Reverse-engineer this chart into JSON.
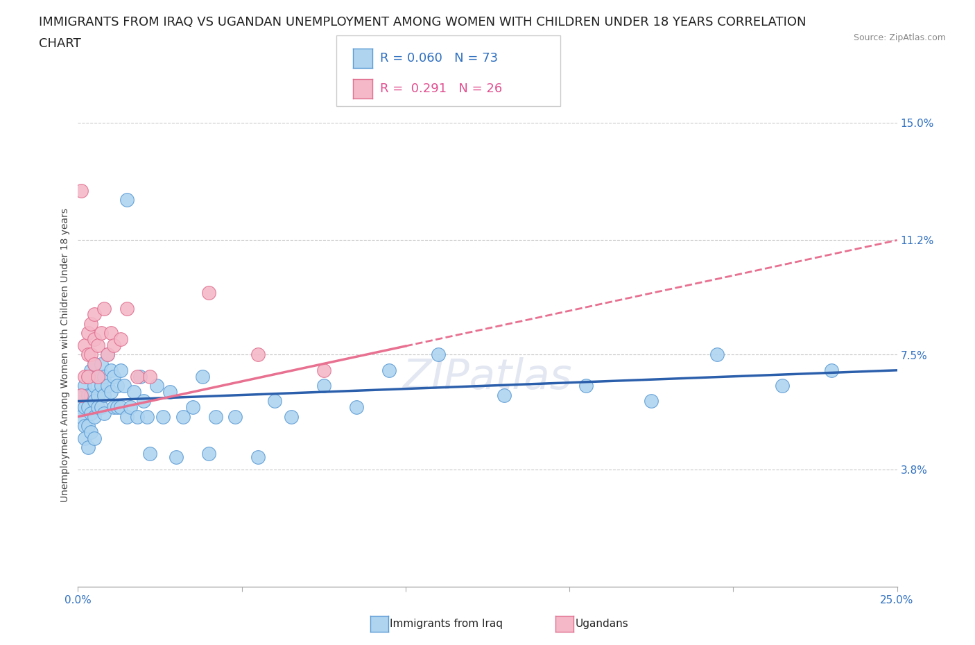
{
  "title_line1": "IMMIGRANTS FROM IRAQ VS UGANDAN UNEMPLOYMENT AMONG WOMEN WITH CHILDREN UNDER 18 YEARS CORRELATION",
  "title_line2": "CHART",
  "source_text": "Source: ZipAtlas.com",
  "ylabel": "Unemployment Among Women with Children Under 18 years",
  "xlim": [
    0,
    0.25
  ],
  "ylim": [
    0,
    0.15
  ],
  "xtick_values": [
    0.0,
    0.05,
    0.1,
    0.15,
    0.2,
    0.25
  ],
  "xticklabels": [
    "0.0%",
    "",
    "",
    "",
    "",
    "25.0%"
  ],
  "ytick_values": [
    0.038,
    0.075,
    0.112,
    0.15
  ],
  "ytick_labels": [
    "3.8%",
    "7.5%",
    "11.2%",
    "15.0%"
  ],
  "legend_r1": "R = 0.060",
  "legend_n1": "N = 73",
  "legend_r2": "R =  0.291",
  "legend_n2": "N = 26",
  "blue_fill": "#aed4f0",
  "blue_edge": "#5b9bd5",
  "pink_fill": "#f4b8c8",
  "pink_edge": "#e07090",
  "blue_line_color": "#2b5fac",
  "pink_line_color": "#e87090",
  "watermark": "ZIPatlas",
  "background_color": "#ffffff",
  "grid_color": "#c8c8c8",
  "title_fontsize": 13,
  "axis_label_fontsize": 10,
  "tick_fontsize": 11,
  "legend_fontsize": 13,
  "iraq_x": [
    0.001,
    0.001,
    0.001,
    0.002,
    0.002,
    0.002,
    0.002,
    0.003,
    0.003,
    0.003,
    0.003,
    0.003,
    0.004,
    0.004,
    0.004,
    0.004,
    0.005,
    0.005,
    0.005,
    0.005,
    0.005,
    0.006,
    0.006,
    0.006,
    0.007,
    0.007,
    0.007,
    0.008,
    0.008,
    0.008,
    0.009,
    0.009,
    0.01,
    0.01,
    0.011,
    0.011,
    0.012,
    0.012,
    0.013,
    0.013,
    0.014,
    0.015,
    0.015,
    0.016,
    0.017,
    0.018,
    0.019,
    0.02,
    0.021,
    0.022,
    0.024,
    0.026,
    0.028,
    0.03,
    0.032,
    0.035,
    0.038,
    0.04,
    0.042,
    0.048,
    0.055,
    0.06,
    0.065,
    0.075,
    0.085,
    0.095,
    0.11,
    0.13,
    0.155,
    0.175,
    0.195,
    0.215,
    0.23
  ],
  "iraq_y": [
    0.062,
    0.058,
    0.055,
    0.065,
    0.058,
    0.052,
    0.048,
    0.068,
    0.062,
    0.058,
    0.052,
    0.045,
    0.07,
    0.062,
    0.056,
    0.05,
    0.072,
    0.065,
    0.06,
    0.055,
    0.048,
    0.068,
    0.062,
    0.058,
    0.072,
    0.065,
    0.058,
    0.068,
    0.062,
    0.056,
    0.075,
    0.065,
    0.07,
    0.063,
    0.068,
    0.058,
    0.065,
    0.058,
    0.07,
    0.058,
    0.065,
    0.055,
    0.125,
    0.058,
    0.063,
    0.055,
    0.068,
    0.06,
    0.055,
    0.043,
    0.065,
    0.055,
    0.063,
    0.042,
    0.055,
    0.058,
    0.068,
    0.043,
    0.055,
    0.055,
    0.042,
    0.06,
    0.055,
    0.065,
    0.058,
    0.07,
    0.075,
    0.062,
    0.065,
    0.06,
    0.075,
    0.065,
    0.07
  ],
  "uganda_x": [
    0.001,
    0.001,
    0.002,
    0.002,
    0.003,
    0.003,
    0.003,
    0.004,
    0.004,
    0.005,
    0.005,
    0.005,
    0.006,
    0.006,
    0.007,
    0.008,
    0.009,
    0.01,
    0.011,
    0.013,
    0.015,
    0.018,
    0.022,
    0.04,
    0.055,
    0.075
  ],
  "uganda_y": [
    0.128,
    0.062,
    0.068,
    0.078,
    0.082,
    0.075,
    0.068,
    0.085,
    0.075,
    0.088,
    0.08,
    0.072,
    0.078,
    0.068,
    0.082,
    0.09,
    0.075,
    0.082,
    0.078,
    0.08,
    0.09,
    0.068,
    0.068,
    0.095,
    0.075,
    0.07
  ]
}
